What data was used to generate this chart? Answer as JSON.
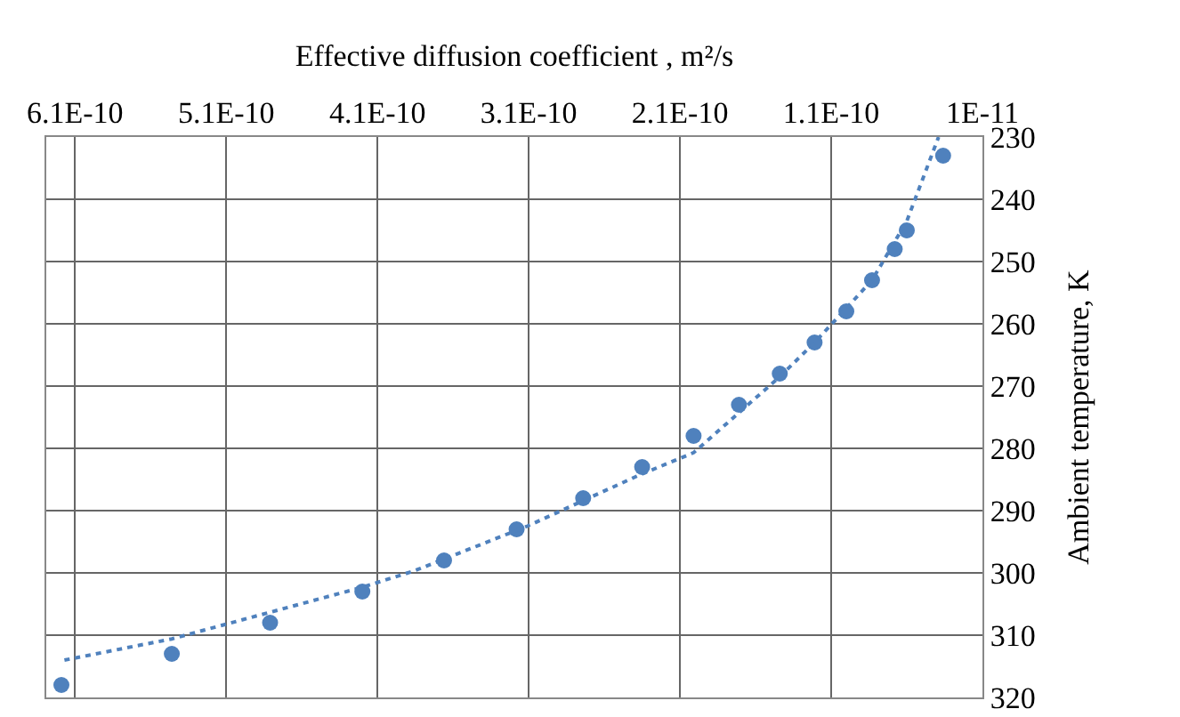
{
  "chart_data": {
    "type": "scatter",
    "xlabel": "Effective diffusion coefficient , m²/s",
    "ylabel": "Ambient temperature, K",
    "xlim": [
      6.29e-10,
      1e-11
    ],
    "ylim": [
      320,
      230
    ],
    "xticks": [
      {
        "value": 6.1e-10,
        "label": "6.1E-10"
      },
      {
        "value": 5.1e-10,
        "label": "5.1E-10"
      },
      {
        "value": 4.1e-10,
        "label": "4.1E-10"
      },
      {
        "value": 3.1e-10,
        "label": "3.1E-10"
      },
      {
        "value": 2.1e-10,
        "label": "2.1E-10"
      },
      {
        "value": 1.1e-10,
        "label": "1.1E-10"
      },
      {
        "value": 1e-11,
        "label": "1E-11"
      }
    ],
    "yticks": [
      230,
      240,
      250,
      260,
      270,
      280,
      290,
      300,
      310,
      320
    ],
    "grid": true,
    "series": [
      {
        "color": "#4f81bd",
        "marker": "circle",
        "x": [
          3.6e-11,
          6e-11,
          6.8e-11,
          8.3e-11,
          1e-10,
          1.21e-10,
          1.44e-10,
          1.71e-10,
          2.01e-10,
          2.35e-10,
          2.74e-10,
          3.18e-10,
          3.66e-10,
          4.2e-10,
          4.81e-10,
          5.46e-10,
          6.19e-10
        ],
        "values": [
          233,
          245,
          248,
          253,
          258,
          263,
          268,
          273,
          278,
          283,
          288,
          293,
          298,
          303,
          308,
          313,
          318
        ]
      },
      {
        "type": "line",
        "color": "#4f81bd",
        "line_style": "dotted",
        "marker": "none",
        "x": [
          6.17e-10,
          5.46e-10,
          4.2e-10,
          3.86e-10,
          3.11e-10,
          2.37e-10,
          2.01e-10,
          1.44e-10,
          1.21e-10,
          1e-10,
          8.3e-11,
          6e-11,
          3.9e-11
        ],
        "values": [
          314,
          310.6,
          302.3,
          299.7,
          292.5,
          284.3,
          280.7,
          268.5,
          263,
          257.5,
          253,
          243.5,
          230
        ]
      }
    ]
  }
}
